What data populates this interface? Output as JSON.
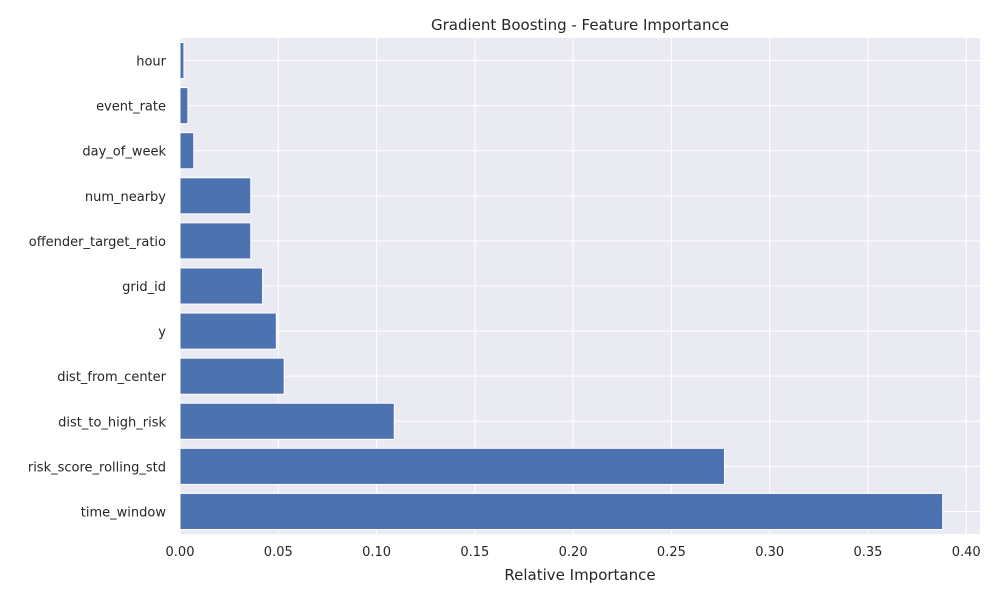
{
  "chart_data": {
    "type": "bar",
    "orientation": "horizontal",
    "title": "Gradient Boosting - Feature Importance",
    "xlabel": "Relative Importance",
    "ylabel": "",
    "categories": [
      "hour",
      "event_rate",
      "day_of_week",
      "num_nearby",
      "offender_target_ratio",
      "grid_id",
      "y",
      "dist_from_center",
      "dist_to_high_risk",
      "risk_score_rolling_std",
      "time_window"
    ],
    "values": [
      0.002,
      0.004,
      0.007,
      0.036,
      0.036,
      0.042,
      0.049,
      0.053,
      0.109,
      0.277,
      0.388
    ],
    "xlim": [
      0,
      0.407
    ],
    "xticks": [
      0.0,
      0.05,
      0.1,
      0.15,
      0.2,
      0.25,
      0.3,
      0.35,
      0.4
    ],
    "xtick_labels": [
      "0.00",
      "0.05",
      "0.10",
      "0.15",
      "0.20",
      "0.25",
      "0.30",
      "0.35",
      "0.40"
    ],
    "grid": true,
    "bar_color": "#4c72b0",
    "background_color": "#eaeaf2"
  }
}
